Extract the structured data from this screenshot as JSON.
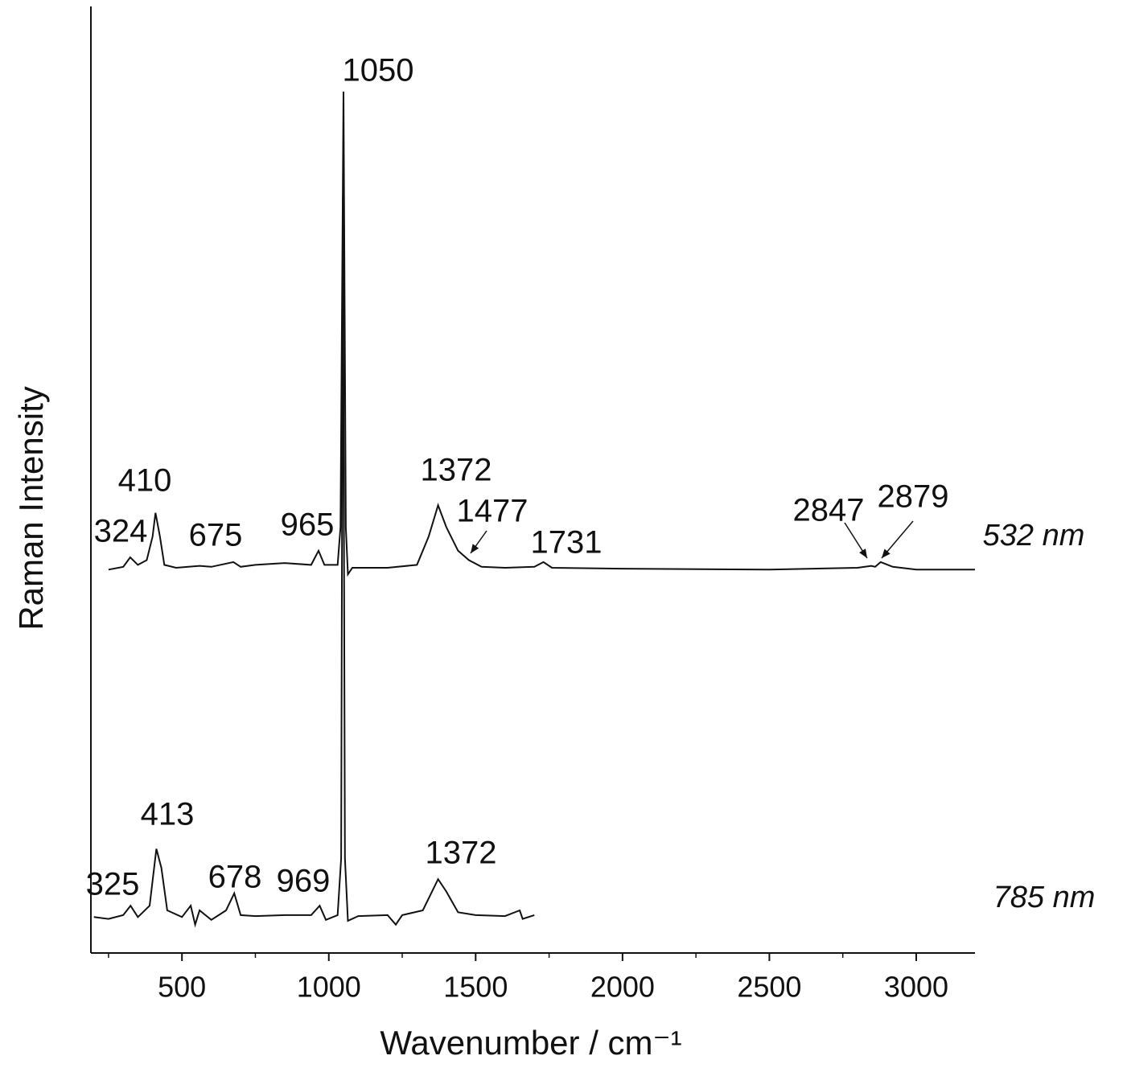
{
  "chart_data": {
    "type": "line",
    "xlabel": "Wavenumber / cm⁻¹",
    "ylabel": "Raman Intensity",
    "xlim": [
      190,
      3200
    ],
    "xticks": [
      500,
      1000,
      1500,
      2000,
      2500,
      3000
    ],
    "ylim": [
      0,
      100
    ],
    "color": "#111111",
    "series": [
      {
        "name": "532 nm",
        "color": "#111111",
        "x": [
          250,
          300,
          324,
          350,
          380,
          400,
          410,
          425,
          440,
          480,
          560,
          600,
          675,
          700,
          750,
          850,
          940,
          965,
          985,
          1030,
          1040,
          1050,
          1058,
          1065,
          1080,
          1200,
          1300,
          1340,
          1372,
          1400,
          1440,
          1477,
          1520,
          1600,
          1700,
          1731,
          1760,
          2000,
          2500,
          2800,
          2847,
          2860,
          2879,
          2920,
          3000,
          3200
        ],
        "values": [
          40.5,
          40.8,
          41.8,
          41,
          41.5,
          44,
          46.5,
          44,
          41,
          40.7,
          40.9,
          40.8,
          41.3,
          40.8,
          41,
          41.2,
          41,
          42.5,
          41,
          41,
          45,
          91,
          45,
          40,
          40.7,
          40.7,
          41,
          44,
          47.3,
          45,
          42.5,
          41.5,
          40.8,
          40.7,
          40.8,
          41.3,
          40.7,
          40.6,
          40.5,
          40.7,
          40.9,
          40.8,
          41.3,
          40.8,
          40.5,
          40.5
        ]
      },
      {
        "name": "785 nm",
        "color": "#111111",
        "x": [
          200,
          250,
          300,
          325,
          350,
          390,
          413,
          430,
          450,
          500,
          530,
          545,
          560,
          600,
          650,
          678,
          700,
          750,
          850,
          940,
          969,
          990,
          1030,
          1042,
          1048,
          1055,
          1065,
          1100,
          1200,
          1228,
          1250,
          1320,
          1372,
          1400,
          1440,
          1500,
          1600,
          1650,
          1660,
          1700
        ],
        "values": [
          3.8,
          3.6,
          4,
          5,
          3.8,
          5,
          11,
          9,
          4.5,
          3.8,
          5,
          3,
          4.5,
          3.5,
          4.5,
          6.3,
          4,
          3.9,
          4,
          4,
          5,
          3.5,
          4,
          10,
          80,
          10,
          3.4,
          3.9,
          4,
          3,
          4,
          4.5,
          7.8,
          6.5,
          4.3,
          4,
          3.9,
          4.5,
          3.6,
          4
        ]
      }
    ],
    "annotations": [
      "1050",
      "410",
      "324",
      "675",
      "965",
      "1372",
      "1477",
      "1731",
      "2847",
      "2879",
      "413",
      "325",
      "678",
      "969",
      "1372"
    ]
  }
}
